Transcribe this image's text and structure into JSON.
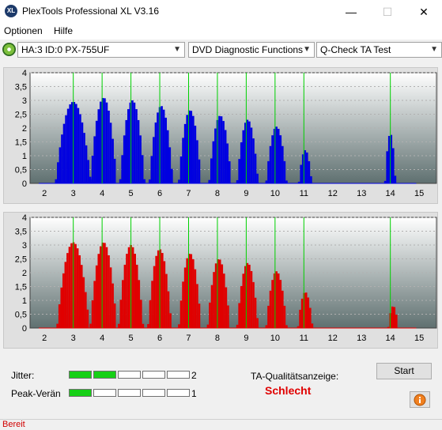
{
  "window": {
    "title": "PlexTools Professional XL V3.16",
    "icon_name": "plextools-xl-icon",
    "icon_text": "XL"
  },
  "window_controls": {
    "minimize": "—",
    "maximize": "☐",
    "close": "✕"
  },
  "menu": {
    "items": [
      "Optionen",
      "Hilfe"
    ]
  },
  "toolbar": {
    "drive": "HA:3 ID:0  PX-755UF",
    "function": "DVD Diagnostic Functions",
    "test": "Q-Check TA Test"
  },
  "chart_data": [
    {
      "type": "bar",
      "name": "upper",
      "color": "#0000e0",
      "marker_color": "#00d000",
      "xlim": [
        1.5,
        15.6
      ],
      "ylim": [
        0,
        4
      ],
      "x_ticks": [
        "2",
        "3",
        "4",
        "5",
        "6",
        "7",
        "8",
        "9",
        "10",
        "11",
        "12",
        "13",
        "14",
        "15"
      ],
      "y_ticks": [
        "0",
        "0,5",
        "1",
        "1,5",
        "2",
        "2,5",
        "3",
        "3,5",
        "4"
      ],
      "markers": [
        3,
        4,
        5,
        6,
        7,
        8,
        9,
        10,
        11,
        14
      ],
      "peaks": [
        {
          "center": 3.0,
          "height": 2.95,
          "half_width": 0.6
        },
        {
          "center": 4.05,
          "height": 3.1,
          "half_width": 0.45
        },
        {
          "center": 5.05,
          "height": 3.0,
          "half_width": 0.42
        },
        {
          "center": 6.05,
          "height": 2.8,
          "half_width": 0.4
        },
        {
          "center": 7.05,
          "height": 2.65,
          "half_width": 0.38
        },
        {
          "center": 8.1,
          "height": 2.45,
          "half_width": 0.38
        },
        {
          "center": 9.05,
          "height": 2.3,
          "half_width": 0.36
        },
        {
          "center": 10.05,
          "height": 2.05,
          "half_width": 0.35
        },
        {
          "center": 11.05,
          "height": 1.2,
          "half_width": 0.22
        },
        {
          "center": 14.0,
          "height": 1.8,
          "half_width": 0.18
        }
      ]
    },
    {
      "type": "bar",
      "name": "lower",
      "color": "#e00000",
      "marker_color": "#00d000",
      "xlim": [
        1.5,
        15.6
      ],
      "ylim": [
        0,
        4
      ],
      "x_ticks": [
        "2",
        "3",
        "4",
        "5",
        "6",
        "7",
        "8",
        "9",
        "10",
        "11",
        "12",
        "13",
        "14",
        "15"
      ],
      "y_ticks": [
        "0",
        "0,5",
        "1",
        "1,5",
        "2",
        "2,5",
        "3",
        "3,5",
        "4"
      ],
      "markers": [
        3,
        4,
        5,
        6,
        7,
        8,
        9,
        10,
        11,
        14
      ],
      "peaks": [
        {
          "center": 3.0,
          "height": 3.1,
          "half_width": 0.55
        },
        {
          "center": 4.05,
          "height": 3.1,
          "half_width": 0.45
        },
        {
          "center": 5.0,
          "height": 3.0,
          "half_width": 0.42
        },
        {
          "center": 6.0,
          "height": 2.85,
          "half_width": 0.4
        },
        {
          "center": 7.05,
          "height": 2.7,
          "half_width": 0.38
        },
        {
          "center": 8.05,
          "height": 2.5,
          "half_width": 0.38
        },
        {
          "center": 9.05,
          "height": 2.35,
          "half_width": 0.36
        },
        {
          "center": 10.05,
          "height": 2.05,
          "half_width": 0.35
        },
        {
          "center": 11.05,
          "height": 1.3,
          "half_width": 0.25
        },
        {
          "center": 14.1,
          "height": 0.8,
          "half_width": 0.17
        }
      ]
    }
  ],
  "results": {
    "jitter_label": "Jitter:",
    "jitter_value": "2",
    "jitter_level": 2,
    "peak_label": "Peak-Verändi",
    "peak_value": "1",
    "peak_level": 1,
    "meter_segments": 5,
    "quality_label": "TA-Qualitätsanzeige:",
    "quality_value": "Schlecht",
    "quality_color": "#e00000"
  },
  "buttons": {
    "start": "Start",
    "info_icon": "info-icon"
  },
  "status": {
    "text": "Bereit"
  }
}
